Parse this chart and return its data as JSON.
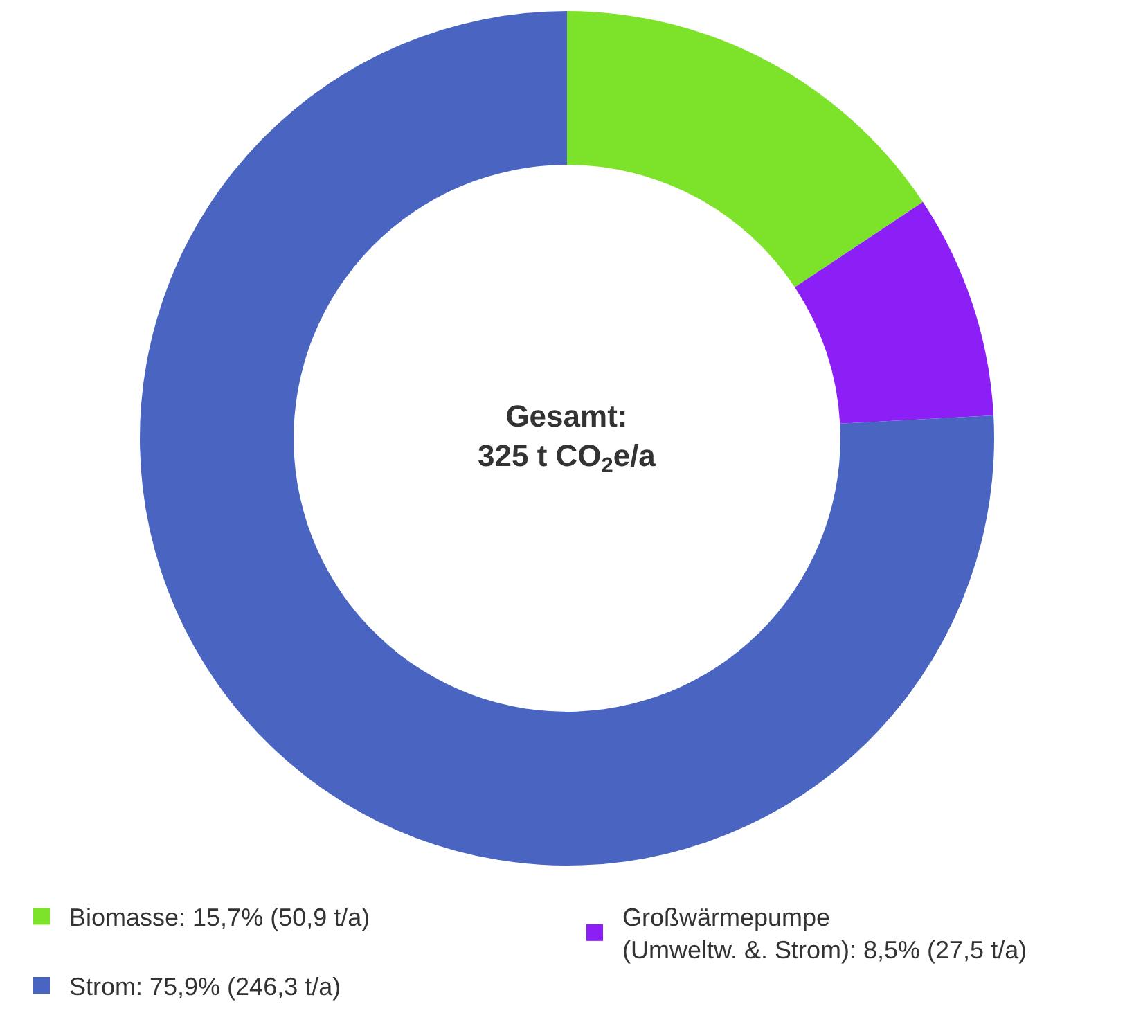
{
  "chart_data": {
    "type": "donut",
    "categories": [
      "Biomasse: 15,7% (50,9 t/a)",
      "Großwärmepumpe\n(Umweltw. &. Strom): 8,5% (27,5 t/a)",
      "Strom: 75,9% (246,3 t/a)"
    ],
    "values": [
      50.9,
      27.5,
      246.3
    ],
    "colors": [
      "#7de32a",
      "#8b1ff5",
      "#4a64c1"
    ],
    "annotations": [
      "Gesamt:\n325 t CO$_{2}$e/a"
    ],
    "legend": "bottom"
  }
}
